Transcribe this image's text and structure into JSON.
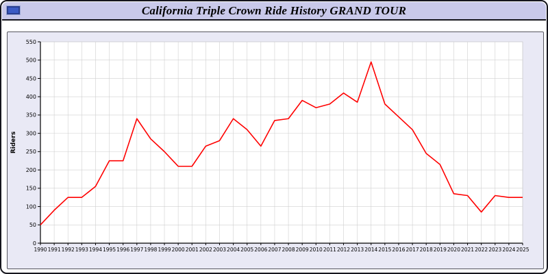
{
  "header": {
    "title": "California Triple Crown Ride History GRAND TOUR"
  },
  "colors": {
    "header_bg": "#c9c9ea",
    "panel_bg": "#e9e9f5",
    "plot_bg": "#ffffff",
    "grid": "#cfcfcf",
    "axis": "#000000",
    "line": "#ff0000"
  },
  "chart_data": {
    "type": "line",
    "title": "California Triple Crown Ride History GRAND TOUR",
    "xlabel": "",
    "ylabel": "Riders",
    "ylim": [
      0,
      550
    ],
    "ytick_step": 50,
    "grid": true,
    "legend": "none",
    "line_color": "#ff0000",
    "x": [
      1990,
      1991,
      1992,
      1993,
      1994,
      1995,
      1996,
      1997,
      1998,
      1999,
      2000,
      2001,
      2002,
      2003,
      2004,
      2005,
      2006,
      2007,
      2008,
      2009,
      2010,
      2011,
      2012,
      2013,
      2014,
      2015,
      2016,
      2017,
      2018,
      2019,
      2020,
      2021,
      2022,
      2023,
      2024,
      2025
    ],
    "values": [
      50,
      90,
      125,
      125,
      155,
      225,
      225,
      340,
      285,
      250,
      210,
      210,
      265,
      280,
      340,
      310,
      265,
      335,
      340,
      390,
      370,
      380,
      410,
      385,
      495,
      380,
      345,
      310,
      245,
      215,
      135,
      130,
      85,
      130,
      125,
      125
    ]
  }
}
